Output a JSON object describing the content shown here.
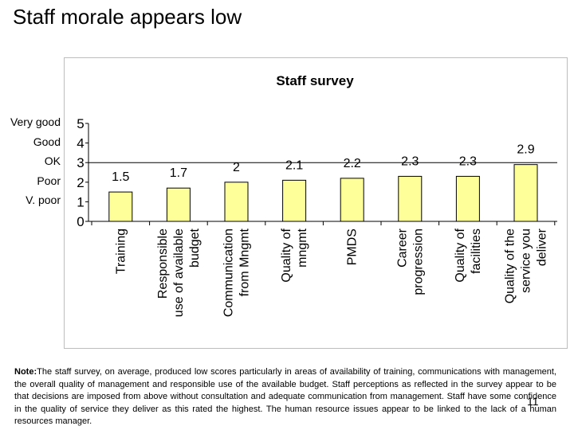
{
  "slide": {
    "title": "Staff morale appears low",
    "slide_number": "11"
  },
  "rating_labels": [
    {
      "text": "Very good",
      "level": 5
    },
    {
      "text": "Good",
      "level": 4
    },
    {
      "text": "OK",
      "level": 3
    },
    {
      "text": "Poor",
      "level": 2
    },
    {
      "text": "V. poor",
      "level": 1
    }
  ],
  "chart_data": {
    "type": "bar",
    "title": "Staff survey",
    "categories": [
      "Training",
      "Responsible use of available budget",
      "Communication from Mngmt",
      "Quality of mngmt",
      "PMDS",
      "Career progression",
      "Quality of facilities",
      "Quality of the service you deliver"
    ],
    "category_lines": [
      [
        "Training"
      ],
      [
        "Responsible",
        "use of available",
        "budget"
      ],
      [
        "Communication",
        "from Mngmt"
      ],
      [
        "Quality of",
        "mngmt"
      ],
      [
        "PMDS"
      ],
      [
        "Career",
        "progression"
      ],
      [
        "Quality of",
        "facilities"
      ],
      [
        "Quality of the",
        "service you",
        "deliver"
      ]
    ],
    "values": [
      1.5,
      1.7,
      2,
      2.1,
      2.2,
      2.3,
      2.3,
      2.9
    ],
    "data_labels": [
      "1.5",
      "1.7",
      "2",
      "2.1",
      "2.2",
      "2.3",
      "2.3",
      "2.9"
    ],
    "y_ticks": [
      "0",
      "1",
      "2",
      "3",
      "4",
      "5"
    ],
    "ylim": [
      0,
      5
    ],
    "reference_line": 3,
    "bar_color": "#ffff99",
    "bar_stroke": "#000000",
    "grid": false,
    "legend": "none"
  },
  "note": {
    "label": "Note:",
    "text": "The staff survey, on average, produced low scores particularly in areas of availability of training, communications with management, the overall quality of management and responsible use of the available budget. Staff perceptions as reflected in the survey appear to be that decisions are imposed from above without consultation and adequate communication from management. Staff have some confidence in the quality of service they deliver as this rated the highest. The human resource issues appear to be linked to the lack of a human resources manager."
  }
}
